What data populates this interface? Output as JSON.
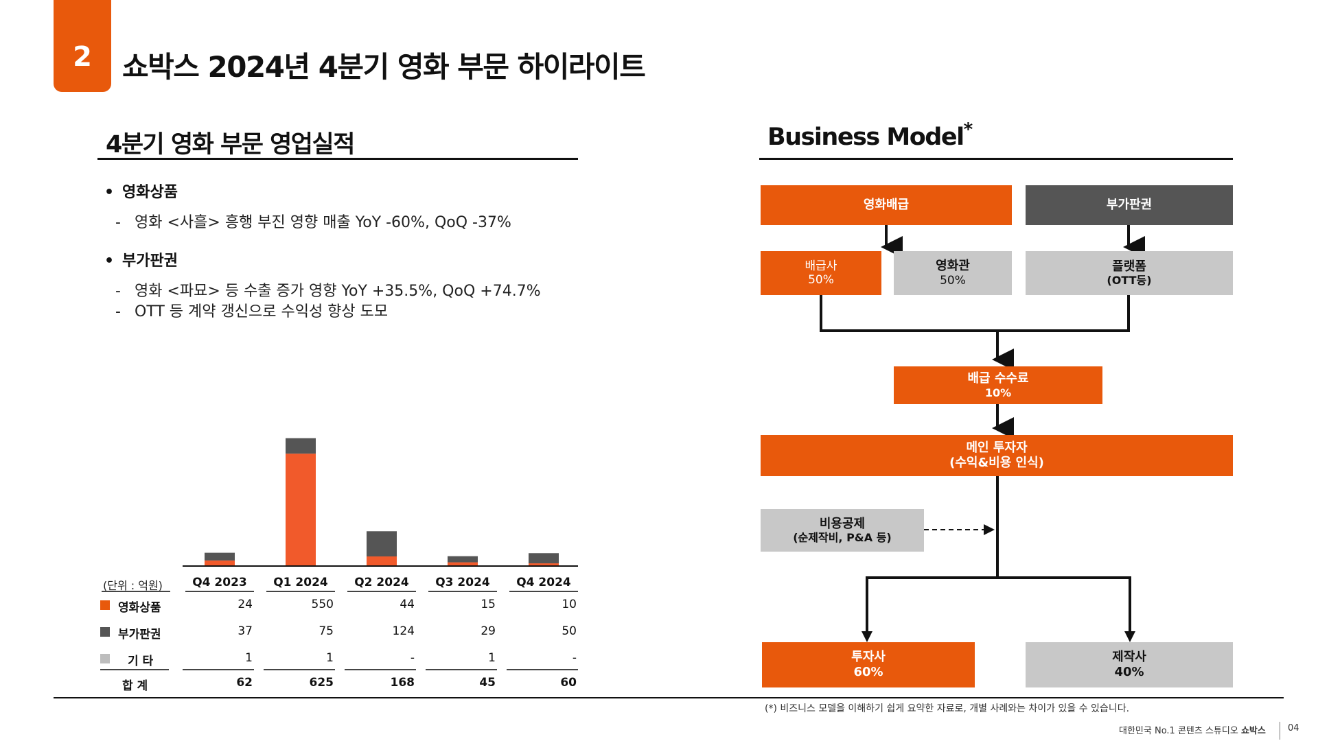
{
  "header": {
    "page_number": "2",
    "title": "쇼박스 2024년 4분기 영화 부문 하이라이트"
  },
  "left": {
    "section_title": "4분기 영화 부문 영업실적",
    "bullets": [
      {
        "title": "영화상품",
        "items": [
          "영화 <사흘> 흥행 부진 영향 매출 YoY -60%, QoQ -37%"
        ]
      },
      {
        "title": "부가판권",
        "items": [
          "영화 <파묘> 등 수출 증가 영향 YoY +35.5%, QoQ +74.7%",
          "OTT 등 계약 갱신으로 수익성 향상 도모"
        ]
      }
    ]
  },
  "colors": {
    "accent": "#E8590C",
    "bar_product": "#F15A2B",
    "bar_ancillary": "#555555",
    "bar_other": "#BDBDBD",
    "line": "#111111"
  },
  "chart_data": {
    "type": "bar",
    "stacked": true,
    "unit_label": "(단위 : 억원)",
    "categories": [
      "Q4 2023",
      "Q1 2024",
      "Q2 2024",
      "Q3 2024",
      "Q4 2024"
    ],
    "series": [
      {
        "name": "영화상품",
        "values": [
          24,
          550,
          44,
          15,
          10
        ],
        "display": [
          "24",
          "550",
          "44",
          "15",
          "10"
        ]
      },
      {
        "name": "부가판권",
        "values": [
          37,
          75,
          124,
          29,
          50
        ],
        "display": [
          "37",
          "75",
          "124",
          "29",
          "50"
        ]
      },
      {
        "name": "기 타",
        "values": [
          1,
          1,
          0,
          1,
          0
        ],
        "display": [
          "1",
          "1",
          "-",
          "1",
          "-"
        ]
      }
    ],
    "total_label": "합 계",
    "totals": [
      "62",
      "625",
      "168",
      "45",
      "60"
    ]
  },
  "right": {
    "section_title": "Business Model",
    "title_mark": "*",
    "boxes": {
      "distribution": "영화배급",
      "ancillary": "부가판권",
      "distributor_name": "배급사",
      "distributor_pct": "50%",
      "theater_name": "영화관",
      "theater_pct": "50%",
      "platform_name": "플랫폼",
      "platform_sub": "(OTT등)",
      "fee_name": "배급 수수료",
      "fee_pct": "10%",
      "main_investor_name": "메인 투자자",
      "main_investor_sub": "(수익&비용 인식)",
      "cost_name": "비용공제",
      "cost_sub": "(순제작비, P&A 등)",
      "investor_name": "투자사",
      "investor_pct": "60%",
      "producer_name": "제작사",
      "producer_pct": "40%"
    },
    "footnote": "(*) 비즈니스 모델을 이해하기 쉽게 요약한 자료로, 개별 사례와는 차이가 있을 수 있습니다."
  },
  "footer": {
    "tagline": "대한민국 No.1 콘텐츠 스튜디오",
    "brand": "쇼박스",
    "page": "04"
  }
}
